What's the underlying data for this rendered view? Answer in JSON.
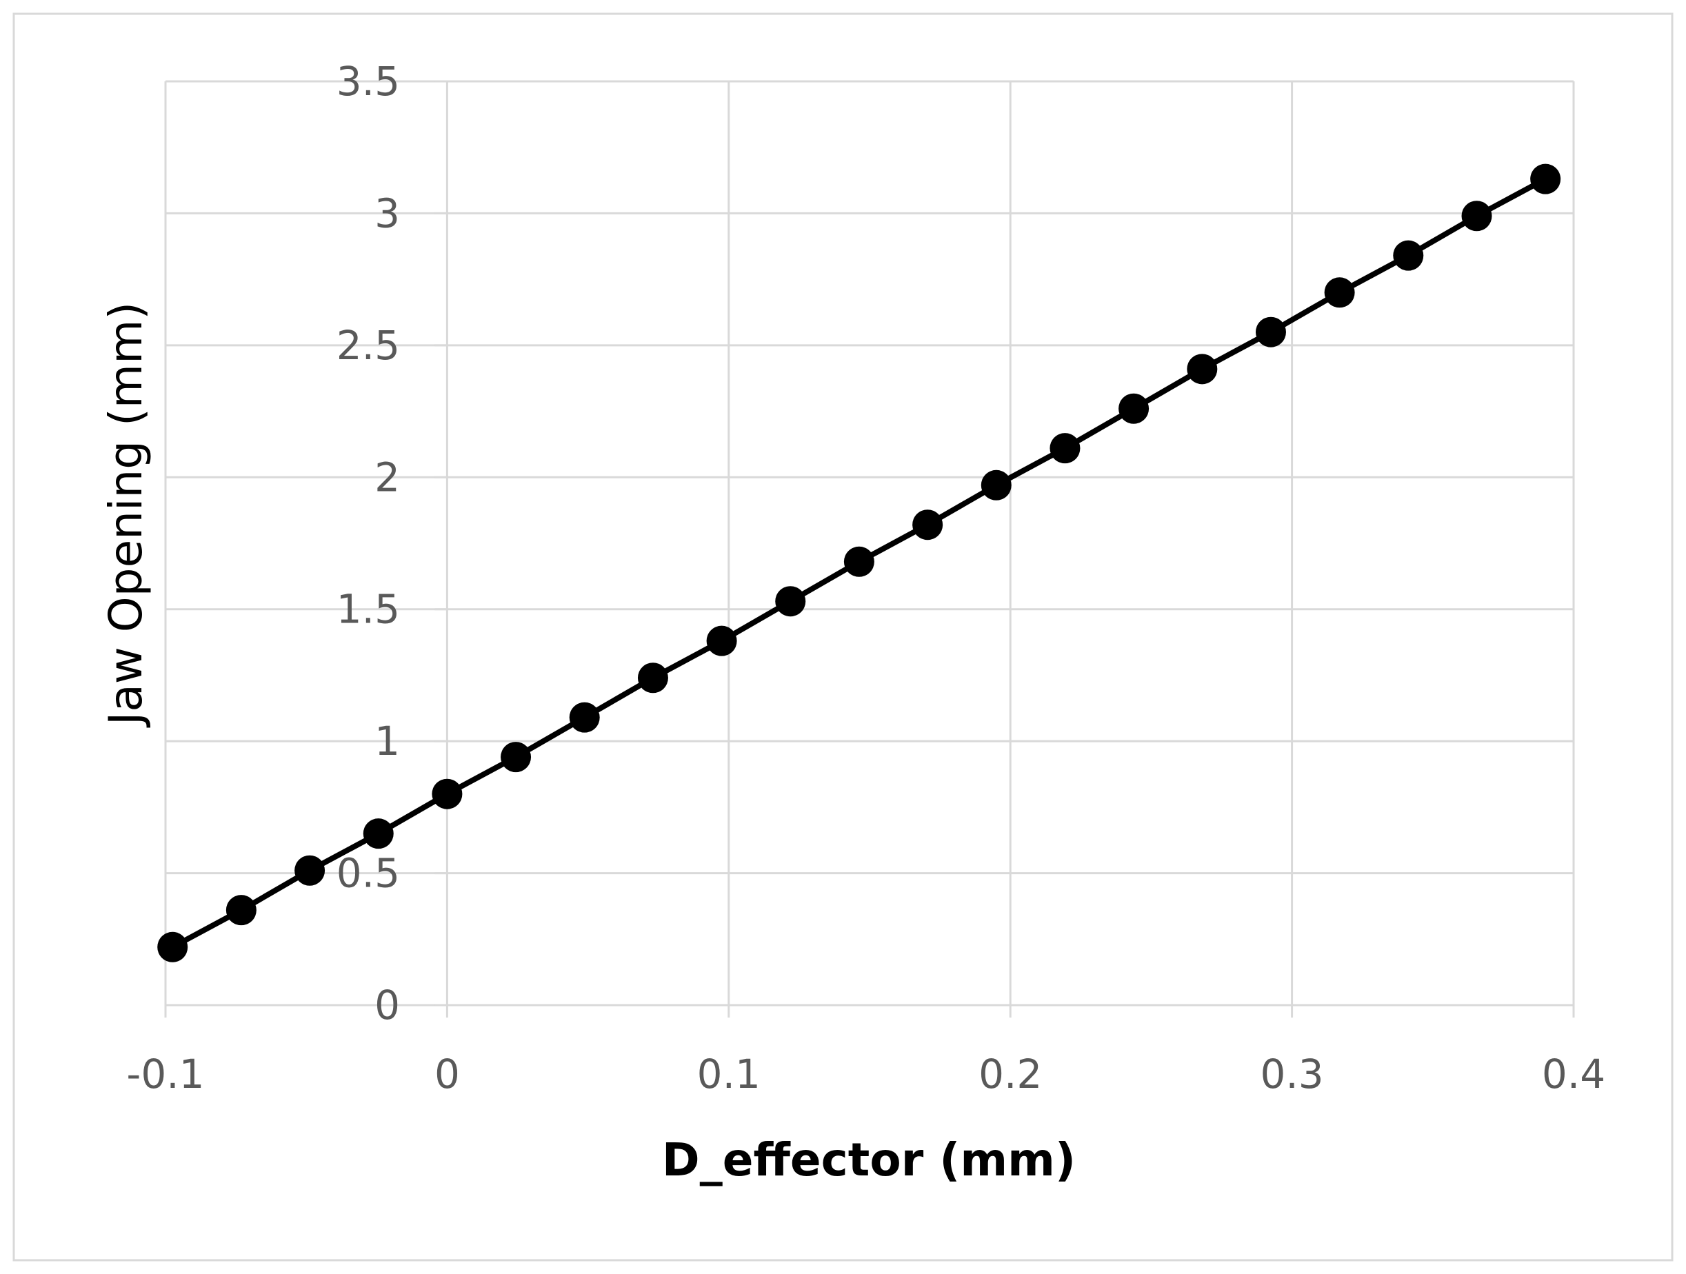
{
  "chart_data": {
    "type": "scatter",
    "title": "",
    "xlabel": "D_effector (mm)",
    "ylabel": "Jaw Opening (mm)",
    "xlim": [
      -0.1,
      0.4
    ],
    "ylim": [
      0,
      3.5
    ],
    "x_ticks": [
      "-0.1",
      "0",
      "0.1",
      "0.2",
      "0.3",
      "0.4"
    ],
    "y_ticks": [
      "0",
      "0.5",
      "1",
      "1.5",
      "2",
      "2.5",
      "3",
      "3.5"
    ],
    "grid": true,
    "legend": "none",
    "line_color": "#000000",
    "marker": "filled-circle",
    "series": [
      {
        "x": [
          -0.0975,
          -0.0731,
          -0.0488,
          -0.0244,
          0.0,
          0.0244,
          0.0488,
          0.0731,
          0.0975,
          0.1219,
          0.1463,
          0.1706,
          0.195,
          0.2194,
          0.2438,
          0.2681,
          0.2925,
          0.3169,
          0.3413,
          0.3656,
          0.39
        ],
        "y": [
          0.22,
          0.36,
          0.51,
          0.65,
          0.8,
          0.94,
          1.09,
          1.24,
          1.38,
          1.53,
          1.68,
          1.82,
          1.97,
          2.11,
          2.26,
          2.41,
          2.55,
          2.7,
          2.84,
          2.99,
          3.13
        ]
      }
    ]
  }
}
